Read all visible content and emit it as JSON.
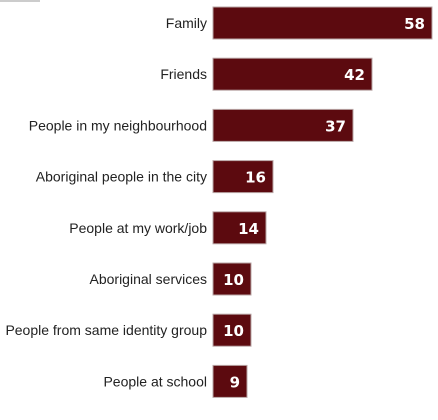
{
  "chart_data": {
    "type": "bar",
    "orientation": "horizontal",
    "categories": [
      "Family",
      "Friends",
      "People in my neighbourhood",
      "Aboriginal people in the city",
      "People at my work/job",
      "Aboriginal services",
      "People from same identity group",
      "People at school"
    ],
    "values": [
      58,
      42,
      37,
      16,
      14,
      10,
      10,
      9
    ],
    "xlim": [
      0,
      58
    ],
    "bar_color": "#5c0a0f",
    "value_label_color": "#ffffff",
    "grid": false,
    "legend": "none"
  }
}
